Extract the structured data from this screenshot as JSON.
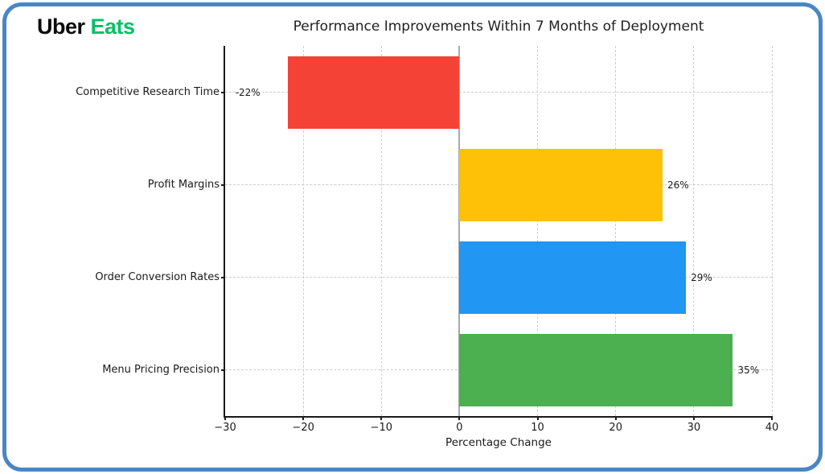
{
  "logo": {
    "uber": "Uber",
    "eats": "Eats"
  },
  "chart_data": {
    "type": "bar",
    "orientation": "horizontal",
    "title": "Performance Improvements Within 7 Months of Deployment",
    "xlabel": "Percentage Change",
    "categories": [
      "Competitive Research Time",
      "Profit Margins",
      "Order Conversion Rates",
      "Menu Pricing Precision"
    ],
    "values": [
      -22,
      26,
      29,
      35
    ],
    "value_labels": [
      "-22%",
      "26%",
      "29%",
      "35%"
    ],
    "bar_colors": [
      "#f44336",
      "#ffc107",
      "#2196f3",
      "#4caf50"
    ],
    "xlim": [
      -30,
      40
    ],
    "xticks": [
      -30,
      -20,
      -10,
      0,
      10,
      20,
      30,
      40
    ],
    "xtick_labels": [
      "−30",
      "−20",
      "−10",
      "0",
      "10",
      "20",
      "30",
      "40"
    ],
    "grid": "dashed",
    "zero_line": true,
    "legend": "none"
  },
  "style": {
    "frame_border_color": "#4a86c5",
    "eats_green": "#06c167",
    "grid_color": "#cdcdcd",
    "zero_line_color": "#a8a8a8",
    "text_color": "#1a1a1a",
    "background": "#ffffff"
  }
}
